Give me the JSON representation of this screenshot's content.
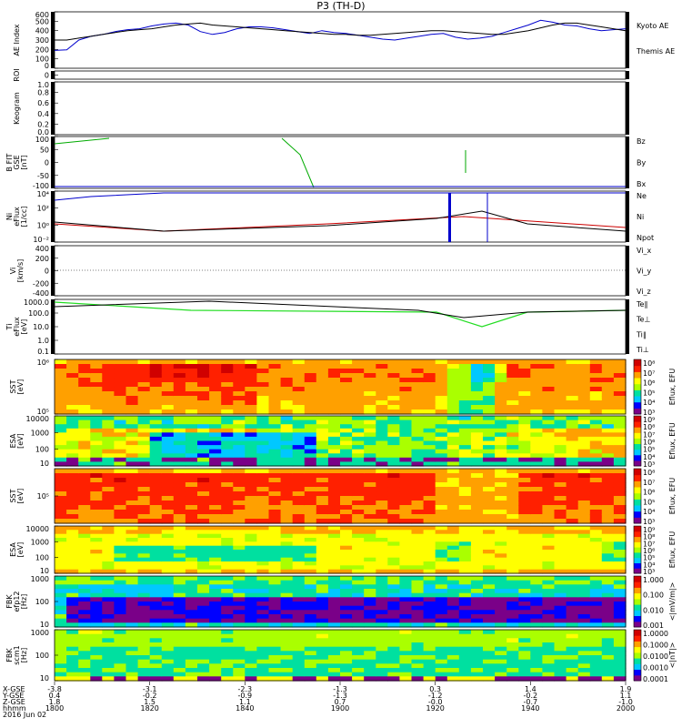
{
  "title": "P3 (TH-D)",
  "colors": {
    "black": "#000000",
    "red": "#cc0000",
    "green": "#00aa00",
    "blue": "#0000cc",
    "brightgreen": "#22dd22"
  },
  "colorbar_stops": [
    "#ffffff",
    "#7a0088",
    "#0000ff",
    "#00c8ff",
    "#00e0a0",
    "#aaff00",
    "#ffff00",
    "#ffa000",
    "#ff2000",
    "#d00000"
  ],
  "chart_data": [
    {
      "type": "line",
      "ylabel": [
        "AE Index"
      ],
      "yticks": [
        "600",
        "500",
        "400",
        "300",
        "200",
        "100",
        "0"
      ],
      "ylim": [
        0,
        600
      ],
      "series": [
        {
          "name": "Kyoto AE",
          "color": "#0000cc",
          "values": [
            190,
            195,
            300,
            340,
            360,
            390,
            410,
            420,
            450,
            470,
            480,
            460,
            390,
            360,
            380,
            420,
            440,
            440,
            430,
            410,
            390,
            370,
            400,
            380,
            370,
            350,
            330,
            310,
            300,
            320,
            340,
            360,
            370,
            330,
            310,
            320,
            340,
            380,
            420,
            460,
            510,
            490,
            460,
            450,
            420,
            400,
            410,
            420
          ]
        },
        {
          "name": "Themis AE",
          "color": "#000000",
          "values": [
            300,
            300,
            320,
            340,
            360,
            380,
            400,
            410,
            420,
            440,
            460,
            470,
            480,
            460,
            450,
            440,
            430,
            420,
            410,
            400,
            390,
            380,
            370,
            360,
            360,
            350,
            350,
            360,
            370,
            380,
            390,
            400,
            400,
            390,
            380,
            370,
            360,
            360,
            380,
            400,
            430,
            460,
            480,
            480,
            460,
            440,
            420,
            400
          ]
        }
      ]
    },
    {
      "type": "line",
      "ylabel": [
        "ROI"
      ],
      "yticks": [
        "0"
      ],
      "ylim": [
        0,
        1
      ],
      "series": []
    },
    {
      "type": "line",
      "ylabel": [
        "Keogram"
      ],
      "yticks": [
        "1.0",
        "0.8",
        "0.6",
        "0.4",
        "0.2",
        "0.0"
      ],
      "ylim": [
        0,
        1
      ],
      "series": []
    },
    {
      "type": "line",
      "ylabel": [
        "B FIT",
        "GSE",
        "[nT]"
      ],
      "yticks": [
        "100",
        "50",
        "0",
        "-50",
        "-100"
      ],
      "ylim": [
        -100,
        100
      ],
      "series": [
        {
          "name": "Bz",
          "color": "#cc0000",
          "values": []
        },
        {
          "name": "By",
          "color": "#00aa00",
          "values": []
        },
        {
          "name": "Bx",
          "color": "#0000cc",
          "values": []
        }
      ]
    },
    {
      "type": "line",
      "ylabel": [
        "Ni",
        "eFlux",
        "[1/cc]"
      ],
      "yticks": [
        "10⁴",
        "10²",
        "10⁰",
        "10⁻²"
      ],
      "ylim": [
        -3,
        5
      ],
      "series": [
        {
          "name": "Ne",
          "color": "#cc0000",
          "values": []
        },
        {
          "name": "Ni",
          "color": "#000000",
          "values": []
        },
        {
          "name": "Npot",
          "color": "#0000cc",
          "values": []
        }
      ]
    },
    {
      "type": "line",
      "ylabel": [
        "Vi",
        "[km/s]"
      ],
      "yticks": [
        "400",
        "200",
        "0",
        "-200",
        "-400"
      ],
      "ylim": [
        -400,
        400
      ],
      "series": [
        {
          "name": "Vi_x",
          "color": "#cc0000",
          "values": []
        },
        {
          "name": "Vi_y",
          "color": "#00aa00",
          "values": []
        },
        {
          "name": "Vi_z",
          "color": "#0000cc",
          "values": []
        }
      ]
    },
    {
      "type": "line",
      "ylabel": [
        "Ti",
        "eFlux",
        "[eV]"
      ],
      "yticks": [
        "1000.0",
        "100.0",
        "10.0",
        "1.0",
        "0.1"
      ],
      "ylim": [
        -1.2,
        3.6
      ],
      "series": [
        {
          "name": "Te∥",
          "color": "#000000",
          "values": []
        },
        {
          "name": "Te⊥",
          "color": "#cc0000",
          "values": []
        },
        {
          "name": "Ti∥",
          "color": "#00aa00",
          "values": []
        },
        {
          "name": "Ti⊥",
          "color": "#0000cc",
          "values": []
        }
      ]
    },
    {
      "type": "heatmap",
      "ylabel": [
        "SST",
        "[eV]"
      ],
      "yticks": [
        "10⁶",
        "10⁵"
      ],
      "cbar_label": "Eflux, EFU",
      "cbar_ticks": [
        "10⁸",
        "10⁷",
        "10⁶",
        "10⁵",
        "10⁴",
        "10³"
      ]
    },
    {
      "type": "heatmap",
      "ylabel": [
        "ESA",
        "[eV]"
      ],
      "yticks": [
        "10000",
        "1000",
        "100",
        "10"
      ],
      "cbar_label": "Eflux, EFU",
      "cbar_ticks": [
        "10⁹",
        "10⁸",
        "10⁷",
        "10⁶",
        "10⁵",
        "10⁴",
        "10³"
      ]
    },
    {
      "type": "heatmap",
      "ylabel": [
        "SST",
        "[eV]"
      ],
      "yticks": [
        "10⁵"
      ],
      "cbar_label": "Eflux, EFU",
      "cbar_ticks": [
        "10⁸",
        "10⁷",
        "10⁶",
        "10⁵",
        "10⁴",
        "10³"
      ]
    },
    {
      "type": "heatmap",
      "ylabel": [
        "ESA",
        "[eV]"
      ],
      "yticks": [
        "10000",
        "1000",
        "100",
        "10"
      ],
      "cbar_label": "Eflux, EFU",
      "cbar_ticks": [
        "10⁹",
        "10⁸",
        "10⁷",
        "10⁶",
        "10⁵",
        "10⁴",
        "10³"
      ]
    },
    {
      "type": "heatmap",
      "ylabel": [
        "FBK",
        "efp12",
        "[Hz]"
      ],
      "yticks": [
        "1000",
        "100",
        "10"
      ],
      "cbar_label": "<|mV/m|>",
      "cbar_ticks": [
        "1.000",
        "0.100",
        "0.010",
        "0.001"
      ]
    },
    {
      "type": "heatmap",
      "ylabel": [
        "FBK",
        "scm1",
        "[Hz]"
      ],
      "yticks": [
        "1000",
        "100",
        "10"
      ],
      "cbar_label": "<|nT|>",
      "cbar_ticks": [
        "1.0000",
        "0.1000",
        "0.0100",
        "0.0010",
        "0.0001"
      ]
    }
  ],
  "footer": {
    "row_labels": [
      "X-GSE",
      "Y-GSE",
      "Z-GSE",
      "hhmm",
      "2016 Jun 02"
    ],
    "columns": [
      {
        "values": [
          "-3.8",
          "0.4",
          "1.8",
          "1800"
        ]
      },
      {
        "values": [
          "-3.1",
          "-0.2",
          "1.5",
          "1820"
        ]
      },
      {
        "values": [
          "-2.3",
          "-0.9",
          "1.1",
          "1840"
        ]
      },
      {
        "values": [
          "-1.3",
          "-1.3",
          "0.7",
          "1900"
        ]
      },
      {
        "values": [
          "0.3",
          "-1.2",
          "-0.0",
          "1920"
        ]
      },
      {
        "values": [
          "1.4",
          "-0.2",
          "-0.7",
          "1940"
        ]
      },
      {
        "values": [
          "1.9",
          "1.1",
          "-1.0",
          "2000"
        ]
      }
    ]
  }
}
